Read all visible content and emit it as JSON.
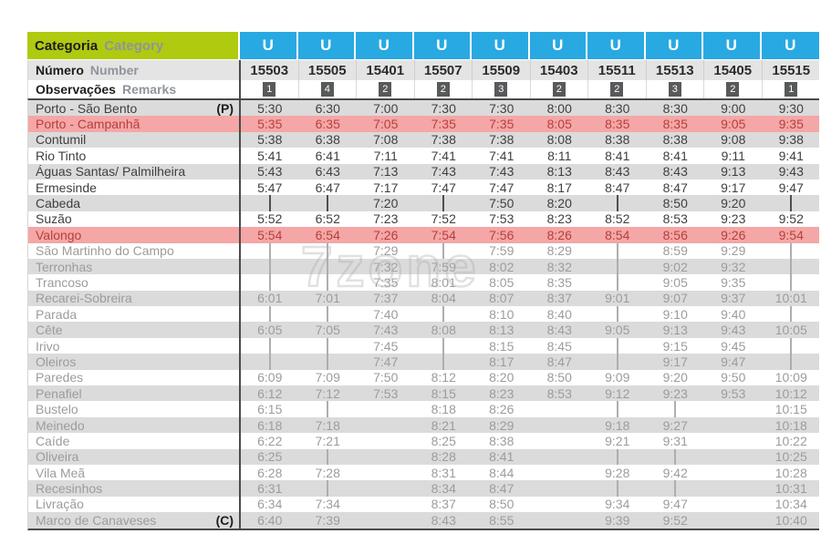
{
  "header": {
    "categoria_pt": "Categoria",
    "categoria_en": "Category",
    "numero_pt": "Número",
    "numero_en": "Number",
    "observacoes_pt": "Observações",
    "observacoes_en": "Remarks"
  },
  "colors": {
    "category_green": "#b0ca10",
    "category_blue": "#29a9e1",
    "highlight_pink": "#f5a6a6",
    "highlight_red_text": "#b5403c",
    "row_gray": "#dbdbdb",
    "badge_gray": "#58595b",
    "dark_text": "#3f3f3f",
    "muted_text": "#9c9c9c"
  },
  "watermark": "7zone",
  "trains": [
    {
      "category": "U",
      "number": "15503",
      "remark": "1"
    },
    {
      "category": "U",
      "number": "15505",
      "remark": "4"
    },
    {
      "category": "U",
      "number": "15401",
      "remark": "2"
    },
    {
      "category": "U",
      "number": "15507",
      "remark": "2"
    },
    {
      "category": "U",
      "number": "15509",
      "remark": "3"
    },
    {
      "category": "U",
      "number": "15403",
      "remark": "2"
    },
    {
      "category": "U",
      "number": "15511",
      "remark": "2"
    },
    {
      "category": "U",
      "number": "15513",
      "remark": "3"
    },
    {
      "category": "U",
      "number": "15405",
      "remark": "2"
    },
    {
      "category": "U",
      "number": "15515",
      "remark": "1"
    }
  ],
  "stations": [
    {
      "name": "Porto - São Bento",
      "tag": "(P)",
      "bg": "gray",
      "tone": "dark",
      "times": [
        "5:30",
        "6:30",
        "7:00",
        "7:30",
        "7:30",
        "8:00",
        "8:30",
        "8:30",
        "9:00",
        "9:30"
      ]
    },
    {
      "name": "Porto - Campanhã",
      "tag": "",
      "bg": "pink",
      "tone": "red",
      "times": [
        "5:35",
        "6:35",
        "7:05",
        "7:35",
        "7:35",
        "8:05",
        "8:35",
        "8:35",
        "9:05",
        "9:35"
      ]
    },
    {
      "name": "Contumil",
      "tag": "",
      "bg": "gray",
      "tone": "dark",
      "times": [
        "5:38",
        "6:38",
        "7:08",
        "7:38",
        "7:38",
        "8:08",
        "8:38",
        "8:38",
        "9:08",
        "9:38"
      ]
    },
    {
      "name": "Rio Tinto",
      "tag": "",
      "bg": "white",
      "tone": "dark",
      "times": [
        "5:41",
        "6:41",
        "7:11",
        "7:41",
        "7:41",
        "8:11",
        "8:41",
        "8:41",
        "9:11",
        "9:41"
      ]
    },
    {
      "name": "Águas Santas/ Palmilheira",
      "tag": "",
      "bg": "gray",
      "tone": "dark",
      "times": [
        "5:43",
        "6:43",
        "7:13",
        "7:43",
        "7:43",
        "8:13",
        "8:43",
        "8:43",
        "9:13",
        "9:43"
      ]
    },
    {
      "name": "Ermesinde",
      "tag": "",
      "bg": "white",
      "tone": "dark",
      "times": [
        "5:47",
        "6:47",
        "7:17",
        "7:47",
        "7:47",
        "8:17",
        "8:47",
        "8:47",
        "9:17",
        "9:47"
      ]
    },
    {
      "name": "Cabeda",
      "tag": "",
      "bg": "gray",
      "tone": "dark",
      "times": [
        "|",
        "|",
        "7:20",
        "|",
        "7:50",
        "8:20",
        "|",
        "8:50",
        "9:20",
        "|"
      ]
    },
    {
      "name": "Suzão",
      "tag": "",
      "bg": "white",
      "tone": "dark",
      "times": [
        "5:52",
        "6:52",
        "7:23",
        "7:52",
        "7:53",
        "8:23",
        "8:52",
        "8:53",
        "9:23",
        "9:52"
      ]
    },
    {
      "name": "Valongo",
      "tag": "",
      "bg": "pink",
      "tone": "red",
      "times": [
        "5:54",
        "6:54",
        "7:26",
        "7:54",
        "7:56",
        "8:26",
        "8:54",
        "8:56",
        "9:26",
        "9:54"
      ]
    },
    {
      "name": "São Martinho do Campo",
      "tag": "",
      "bg": "white",
      "tone": "gray",
      "times": [
        "|",
        "|",
        "7:29",
        "|",
        "7:59",
        "8:29",
        "|",
        "8:59",
        "9:29",
        "|"
      ]
    },
    {
      "name": "Terronhas",
      "tag": "",
      "bg": "gray",
      "tone": "gray",
      "times": [
        "|",
        "|",
        "7:32",
        "7:59",
        "8:02",
        "8:32",
        "|",
        "9:02",
        "9:32",
        "|"
      ]
    },
    {
      "name": "Trancoso",
      "tag": "",
      "bg": "white",
      "tone": "gray",
      "times": [
        "|",
        "|",
        "7:35",
        "8:01",
        "8:05",
        "8:35",
        "|",
        "9:05",
        "9:35",
        "|"
      ]
    },
    {
      "name": "Recarei-Sobreira",
      "tag": "",
      "bg": "gray",
      "tone": "gray",
      "times": [
        "6:01",
        "7:01",
        "7:37",
        "8:04",
        "8:07",
        "8:37",
        "9:01",
        "9:07",
        "9:37",
        "10:01"
      ]
    },
    {
      "name": "Parada",
      "tag": "",
      "bg": "white",
      "tone": "gray",
      "times": [
        "|",
        "|",
        "7:40",
        "|",
        "8:10",
        "8:40",
        "|",
        "9:10",
        "9:40",
        "|"
      ]
    },
    {
      "name": "Cête",
      "tag": "",
      "bg": "gray",
      "tone": "gray",
      "times": [
        "6:05",
        "7:05",
        "7:43",
        "8:08",
        "8:13",
        "8:43",
        "9:05",
        "9:13",
        "9:43",
        "10:05"
      ]
    },
    {
      "name": "Irivo",
      "tag": "",
      "bg": "white",
      "tone": "gray",
      "times": [
        "|",
        "|",
        "7:45",
        "|",
        "8:15",
        "8:45",
        "|",
        "9:15",
        "9:45",
        "|"
      ]
    },
    {
      "name": "Oleiros",
      "tag": "",
      "bg": "gray",
      "tone": "gray",
      "times": [
        "|",
        "|",
        "7:47",
        "|",
        "8:17",
        "8:47",
        "|",
        "9:17",
        "9:47",
        "|"
      ]
    },
    {
      "name": "Paredes",
      "tag": "",
      "bg": "white",
      "tone": "gray",
      "times": [
        "6:09",
        "7:09",
        "7:50",
        "8:12",
        "8:20",
        "8:50",
        "9:09",
        "9:20",
        "9:50",
        "10:09"
      ]
    },
    {
      "name": "Penafiel",
      "tag": "",
      "bg": "gray",
      "tone": "gray",
      "times": [
        "6:12",
        "7:12",
        "7:53",
        "8:15",
        "8:23",
        "8:53",
        "9:12",
        "9:23",
        "9:53",
        "10:12"
      ]
    },
    {
      "name": "Bustelo",
      "tag": "",
      "bg": "white",
      "tone": "gray",
      "times": [
        "6:15",
        "|",
        "",
        "8:18",
        "8:26",
        "",
        "|",
        "|",
        "",
        "10:15"
      ]
    },
    {
      "name": "Meinedo",
      "tag": "",
      "bg": "gray",
      "tone": "gray",
      "times": [
        "6:18",
        "7:18",
        "",
        "8:21",
        "8:29",
        "",
        "9:18",
        "9:27",
        "",
        "10:18"
      ]
    },
    {
      "name": "Caíde",
      "tag": "",
      "bg": "white",
      "tone": "gray",
      "times": [
        "6:22",
        "7:21",
        "",
        "8:25",
        "8:38",
        "",
        "9:21",
        "9:31",
        "",
        "10:22"
      ]
    },
    {
      "name": "Oliveira",
      "tag": "",
      "bg": "gray",
      "tone": "gray",
      "times": [
        "6:25",
        "|",
        "",
        "8:28",
        "8:41",
        "",
        "|",
        "|",
        "",
        "10:25"
      ]
    },
    {
      "name": "Vila Meã",
      "tag": "",
      "bg": "white",
      "tone": "gray",
      "times": [
        "6:28",
        "7:28",
        "",
        "8:31",
        "8:44",
        "",
        "9:28",
        "9:42",
        "",
        "10:28"
      ]
    },
    {
      "name": "Recesinhos",
      "tag": "",
      "bg": "gray",
      "tone": "gray",
      "times": [
        "6:31",
        "|",
        "",
        "8:34",
        "8:47",
        "",
        "|",
        "|",
        "",
        "10:31"
      ]
    },
    {
      "name": "Livração",
      "tag": "",
      "bg": "white",
      "tone": "gray",
      "times": [
        "6:34",
        "7:34",
        "",
        "8:37",
        "8:50",
        "",
        "9:34",
        "9:47",
        "",
        "10:34"
      ]
    },
    {
      "name": "Marco de Canaveses",
      "tag": "(C)",
      "bg": "gray",
      "tone": "gray",
      "times": [
        "6:40",
        "7:39",
        "",
        "8:43",
        "8:55",
        "",
        "9:39",
        "9:52",
        "",
        "10:40"
      ]
    }
  ]
}
